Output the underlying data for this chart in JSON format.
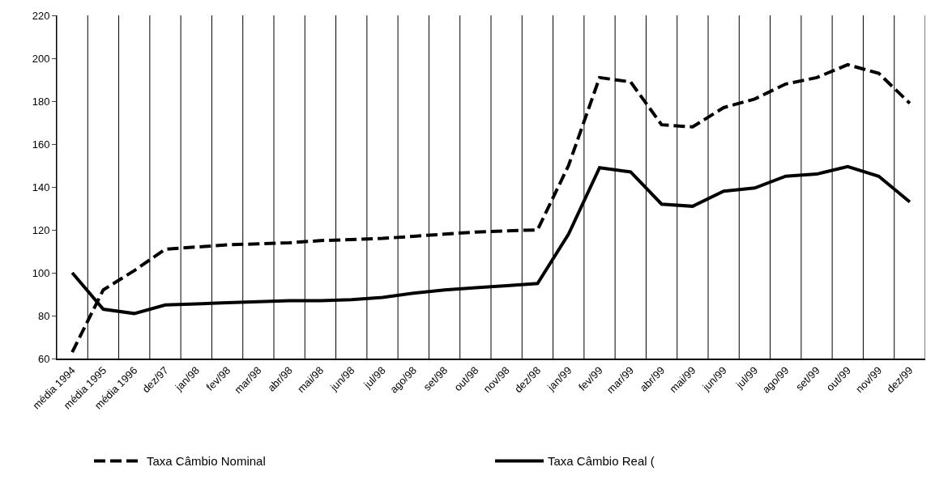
{
  "chart_data": {
    "type": "line",
    "categories": [
      "média 1994",
      "média 1995",
      "média 1996",
      "dez/97",
      "jan/98",
      "fev/98",
      "mar/98",
      "abr/98",
      "mai/98",
      "jun/98",
      "jul/98",
      "ago/98",
      "set/98",
      "out/98",
      "nov/98",
      "dez/98",
      "jan/99",
      "fev/99",
      "mar/99",
      "abr/99",
      "mai/99",
      "jun/99",
      "jul/99",
      "ago/99",
      "set/99",
      "out/99",
      "nov/99",
      "dez/99"
    ],
    "series": [
      {
        "name": "Taxa Câmbio Nominal",
        "color": "#000000",
        "line_style": "dashed",
        "values": [
          63,
          92,
          101,
          111,
          112,
          113,
          113.5,
          114,
          115,
          115.5,
          116,
          117,
          118,
          119,
          119.5,
          120,
          150,
          191,
          189,
          169,
          168,
          177,
          181,
          188,
          191,
          197,
          193,
          179
        ]
      },
      {
        "name": "Taxa Câmbio Real (",
        "color": "#000000",
        "line_style": "solid",
        "values": [
          100,
          83,
          81,
          85,
          85.5,
          86,
          86.5,
          87,
          87,
          87.5,
          88.5,
          90.5,
          92,
          93,
          94,
          95,
          118,
          149,
          147,
          132,
          131,
          138,
          139.5,
          145,
          146,
          149.5,
          145,
          133
        ]
      }
    ],
    "ylim": [
      60,
      220
    ],
    "yticks": [
      60,
      80,
      100,
      120,
      140,
      160,
      180,
      200,
      220
    ],
    "grid": "x",
    "legend": "bottom",
    "marker": "none"
  }
}
